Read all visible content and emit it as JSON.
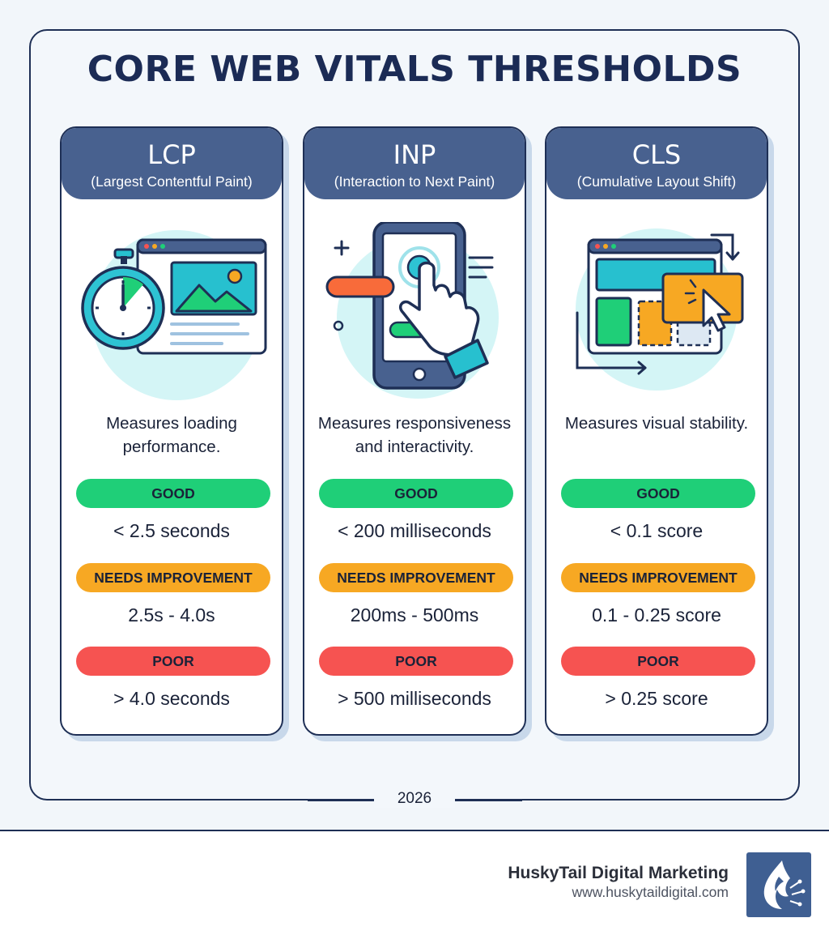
{
  "title": "CORE WEB VITALS THRESHOLDS",
  "cards": [
    {
      "abbr": "LCP",
      "full": "(Largest Contentful Paint)",
      "description": "Measures loading performance.",
      "good_label": "GOOD",
      "good_value": "< 2.5 seconds",
      "ni_label": "NEEDS IMPROVEMENT",
      "ni_value": "2.5s - 4.0s",
      "poor_label": "POOR",
      "poor_value": "> 4.0 seconds",
      "icon": "stopwatch-browser-icon"
    },
    {
      "abbr": "INP",
      "full": "(Interaction to Next Paint)",
      "description": "Measures responsiveness and interactivity.",
      "good_label": "GOOD",
      "good_value": "< 200 milliseconds",
      "ni_label": "NEEDS IMPROVEMENT",
      "ni_value": "200ms - 500ms",
      "poor_label": "POOR",
      "poor_value": "> 500 milliseconds",
      "icon": "phone-tap-icon"
    },
    {
      "abbr": "CLS",
      "full": "(Cumulative Layout Shift)",
      "description": "Measures visual stability.",
      "good_label": "GOOD",
      "good_value": "< 0.1 score",
      "ni_label": "NEEDS IMPROVEMENT",
      "ni_value": "0.1 - 0.25 score",
      "poor_label": "POOR",
      "poor_value": "> 0.25 score",
      "icon": "layout-shift-icon"
    }
  ],
  "year": "2026",
  "footer": {
    "brand": "HuskyTail Digital Marketing",
    "url": "www.huskytaildigital.com",
    "logo_icon": "husky-logo-icon"
  },
  "colors": {
    "good": "#1fcf78",
    "needs_improvement": "#f7a823",
    "poor": "#f65351",
    "header": "#48618f",
    "navy": "#1e2f55"
  }
}
